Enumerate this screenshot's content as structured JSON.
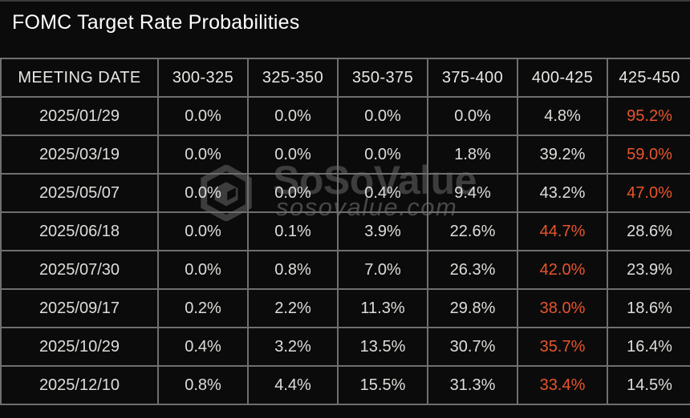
{
  "title": "FOMC Target Rate Probabilities",
  "watermark": {
    "brand": "SoSoValue",
    "domain": "sosovalue.com"
  },
  "colors": {
    "background": "#0b0b0b",
    "grid": "#6f6f6f",
    "text": "#dfddda",
    "highlight": "#e8542c",
    "watermark": "#3d3d3d"
  },
  "table": {
    "columns": [
      "MEETING DATE",
      "300-325",
      "325-350",
      "350-375",
      "375-400",
      "400-425",
      "425-450"
    ],
    "rows": [
      {
        "date": "2025/01/29",
        "values": [
          "0.0%",
          "0.0%",
          "0.0%",
          "0.0%",
          "4.8%",
          "95.2%"
        ],
        "highlight_index": 5
      },
      {
        "date": "2025/03/19",
        "values": [
          "0.0%",
          "0.0%",
          "0.0%",
          "1.8%",
          "39.2%",
          "59.0%"
        ],
        "highlight_index": 5
      },
      {
        "date": "2025/05/07",
        "values": [
          "0.0%",
          "0.0%",
          "0.4%",
          "9.4%",
          "43.2%",
          "47.0%"
        ],
        "highlight_index": 5
      },
      {
        "date": "2025/06/18",
        "values": [
          "0.0%",
          "0.1%",
          "3.9%",
          "22.6%",
          "44.7%",
          "28.6%"
        ],
        "highlight_index": 4
      },
      {
        "date": "2025/07/30",
        "values": [
          "0.0%",
          "0.8%",
          "7.0%",
          "26.3%",
          "42.0%",
          "23.9%"
        ],
        "highlight_index": 4
      },
      {
        "date": "2025/09/17",
        "values": [
          "0.2%",
          "2.2%",
          "11.3%",
          "29.8%",
          "38.0%",
          "18.6%"
        ],
        "highlight_index": 4
      },
      {
        "date": "2025/10/29",
        "values": [
          "0.4%",
          "3.2%",
          "13.5%",
          "30.7%",
          "35.7%",
          "16.4%"
        ],
        "highlight_index": 4
      },
      {
        "date": "2025/12/10",
        "values": [
          "0.8%",
          "4.4%",
          "15.5%",
          "31.3%",
          "33.4%",
          "14.5%"
        ],
        "highlight_index": 4
      }
    ]
  },
  "chart_data": {
    "type": "table",
    "title": "FOMC Target Rate Probabilities",
    "columns": [
      "MEETING DATE",
      "300-325",
      "325-350",
      "350-375",
      "375-400",
      "400-425",
      "425-450"
    ],
    "units": "%",
    "rows": [
      [
        "2025/01/29",
        0.0,
        0.0,
        0.0,
        0.0,
        4.8,
        95.2
      ],
      [
        "2025/03/19",
        0.0,
        0.0,
        0.0,
        1.8,
        39.2,
        59.0
      ],
      [
        "2025/05/07",
        0.0,
        0.0,
        0.4,
        9.4,
        43.2,
        47.0
      ],
      [
        "2025/06/18",
        0.0,
        0.1,
        3.9,
        22.6,
        44.7,
        28.6
      ],
      [
        "2025/07/30",
        0.0,
        0.8,
        7.0,
        26.3,
        42.0,
        23.9
      ],
      [
        "2025/09/17",
        0.2,
        2.2,
        11.3,
        29.8,
        38.0,
        18.6
      ],
      [
        "2025/10/29",
        0.4,
        3.2,
        13.5,
        30.7,
        35.7,
        16.4
      ],
      [
        "2025/12/10",
        0.8,
        4.4,
        15.5,
        31.3,
        33.4,
        14.5
      ]
    ],
    "annotations": "Highest probability in each row rendered in orange (#e8542c)"
  }
}
